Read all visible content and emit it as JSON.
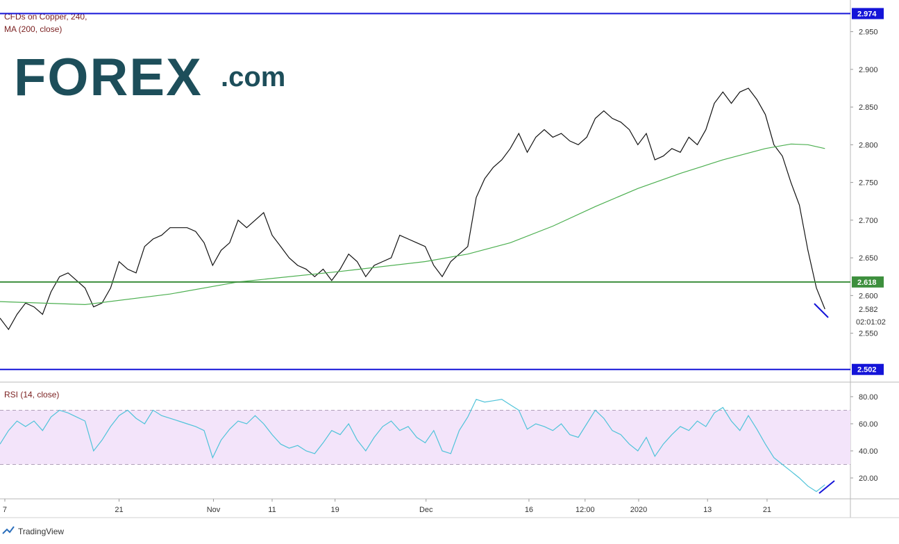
{
  "branding": {
    "logo": "FOREX",
    "logo_suffix": ".com",
    "footer": "TradingView"
  },
  "chart_data": [
    {
      "type": "line",
      "title": "CFDs on Copper, 240,",
      "subtitle": "MA (200, close)",
      "xlim": [
        0,
        100
      ],
      "ylim": [
        2.487,
        2.992
      ],
      "yticks": [
        {
          "value": 2.55,
          "label": "2.550"
        },
        {
          "value": 2.6,
          "label": "2.600"
        },
        {
          "value": 2.65,
          "label": "2.650"
        },
        {
          "value": 2.7,
          "label": "2.700"
        },
        {
          "value": 2.75,
          "label": "2.750"
        },
        {
          "value": 2.8,
          "label": "2.800"
        },
        {
          "value": 2.85,
          "label": "2.850"
        },
        {
          "value": 2.9,
          "label": "2.900"
        },
        {
          "value": 2.95,
          "label": "2.950"
        }
      ],
      "hlines": [
        {
          "value": 2.974,
          "color": "#1414d8"
        },
        {
          "value": 2.618,
          "color": "#3d8f3d"
        },
        {
          "value": 2.502,
          "color": "#1414d8"
        }
      ],
      "last_price": 2.582,
      "countdown": "02:01:02",
      "series": [
        {
          "color": "#111111",
          "x": [
            0,
            1,
            2,
            3,
            4,
            5,
            6,
            7,
            8,
            9,
            10,
            11,
            12,
            13,
            14,
            15,
            16,
            17,
            18,
            19,
            20,
            21,
            22,
            23,
            24,
            25,
            26,
            27,
            28,
            29,
            30,
            31,
            32,
            33,
            34,
            35,
            36,
            37,
            38,
            39,
            40,
            41,
            42,
            43,
            44,
            45,
            46,
            47,
            48,
            49,
            50,
            51,
            52,
            53,
            54,
            55,
            56,
            57,
            58,
            59,
            60,
            61,
            62,
            63,
            64,
            65,
            66,
            67,
            68,
            69,
            70,
            71,
            72,
            73,
            74,
            75,
            76,
            77,
            78,
            79,
            80,
            81,
            82,
            83,
            84,
            85,
            86,
            87,
            88,
            89,
            90,
            91,
            92,
            93,
            94,
            95,
            96,
            97
          ],
          "values": [
            2.57,
            2.555,
            2.575,
            2.59,
            2.585,
            2.575,
            2.605,
            2.625,
            2.63,
            2.62,
            2.61,
            2.585,
            2.59,
            2.61,
            2.645,
            2.635,
            2.63,
            2.665,
            2.675,
            2.68,
            2.69,
            2.69,
            2.69,
            2.685,
            2.67,
            2.64,
            2.66,
            2.67,
            2.7,
            2.69,
            2.7,
            2.71,
            2.68,
            2.665,
            2.65,
            2.64,
            2.635,
            2.625,
            2.635,
            2.62,
            2.635,
            2.655,
            2.645,
            2.625,
            2.64,
            2.645,
            2.65,
            2.68,
            2.675,
            2.67,
            2.665,
            2.64,
            2.625,
            2.645,
            2.655,
            2.665,
            2.73,
            2.755,
            2.77,
            2.78,
            2.795,
            2.815,
            2.79,
            2.81,
            2.82,
            2.81,
            2.815,
            2.805,
            2.8,
            2.81,
            2.835,
            2.845,
            2.835,
            2.83,
            2.82,
            2.8,
            2.815,
            2.78,
            2.785,
            2.795,
            2.79,
            2.81,
            2.8,
            2.82,
            2.855,
            2.87,
            2.855,
            2.87,
            2.875,
            2.86,
            2.84,
            2.8,
            2.785,
            2.75,
            2.72,
            2.66,
            2.61,
            2.582
          ]
        },
        {
          "color": "#4caf50",
          "x": [
            0,
            10,
            20,
            28,
            40,
            50,
            55,
            60,
            65,
            70,
            75,
            80,
            85,
            90,
            93,
            95,
            97
          ],
          "values": [
            2.592,
            2.588,
            2.602,
            2.618,
            2.632,
            2.645,
            2.655,
            2.67,
            2.692,
            2.718,
            2.742,
            2.762,
            2.78,
            2.795,
            2.801,
            2.8,
            2.795
          ]
        }
      ]
    },
    {
      "type": "line",
      "title": "RSI (14, close)",
      "xlim": [
        0,
        100
      ],
      "ylim": [
        4.6,
        89.2
      ],
      "band": [
        30,
        70
      ],
      "yticks": [
        {
          "value": 20,
          "label": "20.00"
        },
        {
          "value": 40,
          "label": "40.00"
        },
        {
          "value": 60,
          "label": "60.00"
        },
        {
          "value": 80,
          "label": "80.00"
        }
      ],
      "xticks": [
        {
          "value": 0.57,
          "label": "7"
        },
        {
          "value": 14,
          "label": "21"
        },
        {
          "value": 25.1,
          "label": "Nov"
        },
        {
          "value": 32,
          "label": "11"
        },
        {
          "value": 39.4,
          "label": "19"
        },
        {
          "value": 50.1,
          "label": "Dec"
        },
        {
          "value": 62.2,
          "label": "16"
        },
        {
          "value": 68.8,
          "label": "12:00"
        },
        {
          "value": 75.1,
          "label": "2020"
        },
        {
          "value": 83.2,
          "label": "13"
        },
        {
          "value": 90.2,
          "label": "21"
        }
      ],
      "series": [
        {
          "color": "#4fc3d9",
          "x": [
            0,
            1,
            2,
            3,
            4,
            5,
            6,
            7,
            8,
            9,
            10,
            11,
            12,
            13,
            14,
            15,
            16,
            17,
            18,
            19,
            20,
            21,
            22,
            23,
            24,
            25,
            26,
            27,
            28,
            29,
            30,
            31,
            32,
            33,
            34,
            35,
            36,
            37,
            38,
            39,
            40,
            41,
            42,
            43,
            44,
            45,
            46,
            47,
            48,
            49,
            50,
            51,
            52,
            53,
            54,
            55,
            56,
            57,
            58,
            59,
            60,
            61,
            62,
            63,
            64,
            65,
            66,
            67,
            68,
            69,
            70,
            71,
            72,
            73,
            74,
            75,
            76,
            77,
            78,
            79,
            80,
            81,
            82,
            83,
            84,
            85,
            86,
            87,
            88,
            89,
            90,
            91,
            92,
            93,
            94,
            95,
            96,
            97
          ],
          "values": [
            45,
            55,
            62,
            58,
            62,
            55,
            65,
            70,
            68,
            65,
            62,
            40,
            48,
            58,
            66,
            70,
            64,
            60,
            70,
            66,
            64,
            62,
            60,
            58,
            55,
            35,
            48,
            56,
            62,
            60,
            66,
            60,
            52,
            45,
            42,
            44,
            40,
            38,
            46,
            55,
            52,
            60,
            48,
            40,
            50,
            58,
            62,
            55,
            58,
            50,
            46,
            55,
            40,
            38,
            55,
            65,
            78,
            76,
            77,
            78,
            74,
            70,
            56,
            60,
            58,
            55,
            60,
            52,
            50,
            60,
            70,
            64,
            55,
            52,
            45,
            40,
            50,
            36,
            45,
            52,
            58,
            55,
            62,
            58,
            68,
            72,
            62,
            55,
            66,
            56,
            45,
            35,
            30,
            25,
            20,
            14,
            10,
            15
          ]
        }
      ]
    }
  ]
}
